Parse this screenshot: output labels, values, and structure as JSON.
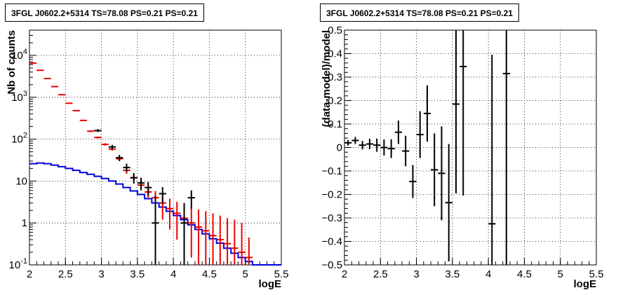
{
  "chart_data": [
    {
      "type": "step",
      "title": "3FGL J0602.2+5314 TS=78.08 PS=0.21 PS=0.21",
      "xlabel": "logE",
      "ylabel": "Nb of counts",
      "xlim": [
        2,
        5.5
      ],
      "ylim": [
        0.1,
        40000
      ],
      "yscale": "log",
      "grid": true,
      "x_ticks": [
        "2",
        "2.5",
        "3",
        "3.5",
        "4",
        "4.5",
        "5",
        "5.5"
      ],
      "y_ticks": [
        {
          "value": 0.1,
          "label": "10",
          "exp": "-1"
        },
        {
          "value": 1,
          "label": "1",
          "exp": ""
        },
        {
          "value": 10,
          "label": "10",
          "exp": ""
        },
        {
          "value": 100,
          "label": "10",
          "exp": "2"
        },
        {
          "value": 1000,
          "label": "10",
          "exp": "3"
        },
        {
          "value": 10000,
          "label": "10",
          "exp": "4"
        }
      ],
      "bin_width": 0.1,
      "series": [
        {
          "role": "data",
          "color": "#000000",
          "points": [
            {
              "x": 2.95,
              "y": 160,
              "lo": 147,
              "hi": 173
            },
            {
              "x": 3.15,
              "y": 65,
              "lo": 57,
              "hi": 73
            },
            {
              "x": 3.25,
              "y": 36,
              "lo": 30,
              "hi": 42
            },
            {
              "x": 3.35,
              "y": 21,
              "lo": 16.5,
              "hi": 26
            },
            {
              "x": 3.45,
              "y": 12,
              "lo": 8.7,
              "hi": 15.5
            },
            {
              "x": 3.55,
              "y": 9,
              "lo": 6,
              "hi": 12
            },
            {
              "x": 3.65,
              "y": 7,
              "lo": 4.5,
              "hi": 9.5
            },
            {
              "x": 3.75,
              "y": 1,
              "lo": 0.1,
              "hi": 4.5
            },
            {
              "x": 3.85,
              "y": 5,
              "lo": 2.8,
              "hi": 7.2
            },
            {
              "x": 4.15,
              "y": 1,
              "lo": 0.1,
              "hi": 3
            },
            {
              "x": 4.25,
              "y": 4,
              "lo": 2.2,
              "hi": 6
            }
          ]
        },
        {
          "role": "model",
          "color": "#ee0000",
          "points": [
            {
              "x": 2.05,
              "y": 6500,
              "lo": 6350,
              "hi": 6650
            },
            {
              "x": 2.15,
              "y": 4400,
              "lo": 4300,
              "hi": 4500
            },
            {
              "x": 2.25,
              "y": 2800,
              "lo": 2730,
              "hi": 2870
            },
            {
              "x": 2.35,
              "y": 1800,
              "lo": 1760,
              "hi": 1840
            },
            {
              "x": 2.45,
              "y": 1150,
              "lo": 1120,
              "hi": 1180
            },
            {
              "x": 2.55,
              "y": 720,
              "lo": 700,
              "hi": 740
            },
            {
              "x": 2.65,
              "y": 480,
              "lo": 465,
              "hi": 495
            },
            {
              "x": 2.75,
              "y": 280,
              "lo": 270,
              "hi": 290
            },
            {
              "x": 2.85,
              "y": 155,
              "lo": 148,
              "hi": 162
            },
            {
              "x": 2.95,
              "y": 110,
              "lo": 104,
              "hi": 116
            },
            {
              "x": 3.05,
              "y": 75,
              "lo": 70,
              "hi": 80
            },
            {
              "x": 3.15,
              "y": 58,
              "lo": 53,
              "hi": 63
            },
            {
              "x": 3.25,
              "y": 34,
              "lo": 30,
              "hi": 38
            },
            {
              "x": 3.35,
              "y": 18,
              "lo": 15,
              "hi": 21
            },
            {
              "x": 3.45,
              "y": 12,
              "lo": 9.5,
              "hi": 14.5
            },
            {
              "x": 3.55,
              "y": 8,
              "lo": 6,
              "hi": 10
            },
            {
              "x": 3.65,
              "y": 5.5,
              "lo": 4,
              "hi": 7.2
            },
            {
              "x": 3.75,
              "y": 4,
              "lo": 2.5,
              "hi": 5.8
            },
            {
              "x": 3.85,
              "y": 3,
              "lo": 1.2,
              "hi": 5
            },
            {
              "x": 3.95,
              "y": 2.2,
              "lo": 0.7,
              "hi": 3.8
            },
            {
              "x": 4.05,
              "y": 1.7,
              "lo": 0.4,
              "hi": 3.2
            },
            {
              "x": 4.15,
              "y": 1.3,
              "lo": 0.25,
              "hi": 2.7
            },
            {
              "x": 4.25,
              "y": 1.0,
              "lo": 0.15,
              "hi": 2.3
            },
            {
              "x": 4.35,
              "y": 0.8,
              "lo": 0.1,
              "hi": 2.1
            },
            {
              "x": 4.45,
              "y": 0.65,
              "lo": 0.1,
              "hi": 1.9
            },
            {
              "x": 4.55,
              "y": 0.5,
              "lo": 0.1,
              "hi": 1.7
            },
            {
              "x": 4.65,
              "y": 0.4,
              "lo": 0.1,
              "hi": 1.5
            },
            {
              "x": 4.75,
              "y": 0.32,
              "lo": 0.1,
              "hi": 1.3
            },
            {
              "x": 4.85,
              "y": 0.25,
              "lo": 0.1,
              "hi": 1.2
            },
            {
              "x": 4.95,
              "y": 0.2,
              "lo": 0.1,
              "hi": 1.0
            },
            {
              "x": 5.05,
              "y": 0.15,
              "lo": 0.1,
              "hi": 0.45
            }
          ]
        },
        {
          "role": "background",
          "color": "#0000dd",
          "edges": [
            2.0,
            2.1,
            2.2,
            2.3,
            2.4,
            2.5,
            2.6,
            2.7,
            2.8,
            2.9,
            3.0,
            3.1,
            3.2,
            3.3,
            3.4,
            3.5,
            3.6,
            3.7,
            3.8,
            3.9,
            4.0,
            4.1,
            4.2,
            4.3,
            4.4,
            4.5,
            4.6,
            4.7,
            4.8,
            4.9,
            5.0,
            5.1,
            5.2,
            5.3,
            5.4,
            5.5
          ],
          "values": [
            26,
            27,
            26,
            24,
            22,
            20,
            18,
            16,
            14.5,
            13,
            11.5,
            10,
            8.5,
            7,
            5.8,
            4.8,
            3.8,
            3.0,
            2.4,
            1.9,
            1.5,
            1.2,
            0.9,
            0.7,
            0.55,
            0.42,
            0.33,
            0.25,
            0.19,
            0.15,
            0.12,
            0.1,
            0.1,
            0.1,
            0.1
          ]
        }
      ]
    },
    {
      "type": "scatter",
      "title": "3FGL J0602.2+5314 TS=78.08 PS=0.21 PS=0.21",
      "xlabel": "logE",
      "ylabel": "(data-model)/model",
      "xlim": [
        2,
        5.5
      ],
      "ylim": [
        -0.5,
        0.5
      ],
      "grid": true,
      "x_ticks": [
        "2",
        "2.5",
        "3",
        "3.5",
        "4",
        "4.5",
        "5",
        "5.5"
      ],
      "y_ticks": [
        "−0.5",
        "−0.4",
        "−0.3",
        "−0.2",
        "−0.1",
        "0",
        "0.1",
        "0.2",
        "0.3",
        "0.4",
        "0.5"
      ],
      "bin_width": 0.1,
      "points": [
        {
          "x": 2.05,
          "y": 0.02,
          "err": 0.012
        },
        {
          "x": 2.15,
          "y": 0.03,
          "err": 0.015
        },
        {
          "x": 2.25,
          "y": 0.01,
          "err": 0.018
        },
        {
          "x": 2.35,
          "y": 0.015,
          "err": 0.022
        },
        {
          "x": 2.45,
          "y": 0.01,
          "err": 0.028
        },
        {
          "x": 2.55,
          "y": 0.0,
          "err": 0.034
        },
        {
          "x": 2.65,
          "y": -0.005,
          "err": 0.04
        },
        {
          "x": 2.75,
          "y": 0.065,
          "err": 0.05
        },
        {
          "x": 2.85,
          "y": -0.015,
          "err": 0.065
        },
        {
          "x": 2.95,
          "y": -0.145,
          "err": 0.07
        },
        {
          "x": 3.05,
          "y": 0.055,
          "err": 0.1
        },
        {
          "x": 3.15,
          "y": 0.145,
          "err": 0.12
        },
        {
          "x": 3.25,
          "y": -0.095,
          "err": 0.155
        },
        {
          "x": 3.35,
          "y": -0.11,
          "err": 0.2
        },
        {
          "x": 3.45,
          "y": -0.235,
          "err": 0.25
        },
        {
          "x": 3.55,
          "y": 0.185,
          "err": 0.38
        },
        {
          "x": 3.65,
          "y": 0.345,
          "err": 0.55
        },
        {
          "x": 4.05,
          "y": -0.325,
          "err": 0.72
        },
        {
          "x": 4.25,
          "y": 0.315,
          "err": 0.9
        }
      ]
    }
  ]
}
